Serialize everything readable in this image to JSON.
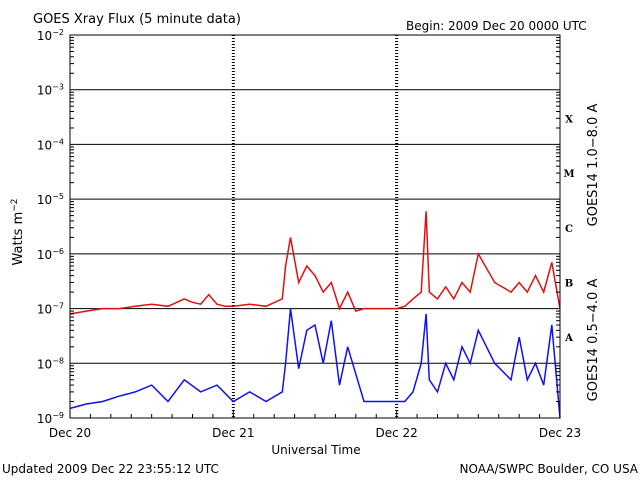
{
  "header": {
    "title": "GOES Xray Flux (5 minute data)",
    "begin": "Begin:  2009 Dec 20 0000 UTC"
  },
  "footer": {
    "updated": "Updated 2009 Dec 22 23:55:12 UTC",
    "source": "NOAA/SWPC Boulder, CO USA"
  },
  "chart_data": {
    "type": "line",
    "title": "GOES Xray Flux (5 minute data)",
    "xlabel": "Universal Time",
    "ylabel": "Watts m-2",
    "ylabel_base": "Watts m",
    "ylabel_sup": "−2",
    "y_scale": "log",
    "ylim": [
      1e-09,
      0.01
    ],
    "y_ticks": [
      {
        "value": 0.01,
        "base": "10",
        "exp": "−2"
      },
      {
        "value": 0.001,
        "base": "10",
        "exp": "−3"
      },
      {
        "value": 0.0001,
        "base": "10",
        "exp": "−4"
      },
      {
        "value": 1e-05,
        "base": "10",
        "exp": "−5"
      },
      {
        "value": 1e-06,
        "base": "10",
        "exp": "−6"
      },
      {
        "value": 1e-07,
        "base": "10",
        "exp": "−7"
      },
      {
        "value": 1e-08,
        "base": "10",
        "exp": "−8"
      },
      {
        "value": 1e-09,
        "base": "10",
        "exp": "−9"
      }
    ],
    "x_ticks": [
      "Dec 20",
      "Dec 21",
      "Dec 22",
      "Dec 23"
    ],
    "xlim_days": [
      0,
      3
    ],
    "flare_classes": [
      {
        "label": "X",
        "flux": 0.0003
      },
      {
        "label": "M",
        "flux": 3e-05
      },
      {
        "label": "C",
        "flux": 3e-06
      },
      {
        "label": "B",
        "flux": 3e-07
      },
      {
        "label": "A",
        "flux": 3e-08
      }
    ],
    "grid": true,
    "series": [
      {
        "name": "GOES14 1.0−8.0 A",
        "color": "#e01010",
        "x_days": [
          0,
          0.1,
          0.2,
          0.3,
          0.4,
          0.5,
          0.6,
          0.7,
          0.75,
          0.8,
          0.85,
          0.9,
          0.95,
          1.0,
          1.1,
          1.2,
          1.3,
          1.32,
          1.35,
          1.4,
          1.45,
          1.5,
          1.55,
          1.6,
          1.65,
          1.7,
          1.75,
          1.8,
          1.9,
          2.0,
          2.05,
          2.1,
          2.15,
          2.18,
          2.2,
          2.25,
          2.3,
          2.35,
          2.4,
          2.45,
          2.5,
          2.6,
          2.7,
          2.75,
          2.8,
          2.85,
          2.9,
          2.95,
          3.0
        ],
        "values": [
          8e-08,
          9e-08,
          1e-07,
          1e-07,
          1.1e-07,
          1.2e-07,
          1.1e-07,
          1.5e-07,
          1.3e-07,
          1.2e-07,
          1.8e-07,
          1.2e-07,
          1.1e-07,
          1.1e-07,
          1.2e-07,
          1.1e-07,
          1.5e-07,
          6e-07,
          2e-06,
          3e-07,
          6e-07,
          4e-07,
          2e-07,
          3e-07,
          1e-07,
          2e-07,
          9e-08,
          1e-07,
          1e-07,
          1e-07,
          1.1e-07,
          1.5e-07,
          2e-07,
          6e-06,
          2e-07,
          1.5e-07,
          2.5e-07,
          1.5e-07,
          3e-07,
          2e-07,
          1e-06,
          3e-07,
          2e-07,
          3e-07,
          2e-07,
          4e-07,
          2e-07,
          7e-07,
          1e-07
        ]
      },
      {
        "name": "GOES14 0.5−4.0 A",
        "color": "#1010f0",
        "x_days": [
          0,
          0.1,
          0.2,
          0.3,
          0.4,
          0.5,
          0.6,
          0.7,
          0.8,
          0.9,
          1.0,
          1.1,
          1.2,
          1.3,
          1.32,
          1.35,
          1.4,
          1.45,
          1.5,
          1.55,
          1.6,
          1.65,
          1.7,
          1.8,
          1.9,
          2.0,
          2.05,
          2.1,
          2.15,
          2.18,
          2.2,
          2.25,
          2.3,
          2.35,
          2.4,
          2.45,
          2.5,
          2.6,
          2.7,
          2.75,
          2.8,
          2.85,
          2.9,
          2.95,
          3.0
        ],
        "values": [
          1.5e-09,
          1.8e-09,
          2e-09,
          2.5e-09,
          3e-09,
          4e-09,
          2e-09,
          5e-09,
          3e-09,
          4e-09,
          2e-09,
          3e-09,
          2e-09,
          3e-09,
          1e-08,
          1e-07,
          8e-09,
          4e-08,
          5e-08,
          1e-08,
          6e-08,
          4e-09,
          2e-08,
          2e-09,
          2e-09,
          2e-09,
          2e-09,
          3e-09,
          1e-08,
          8e-08,
          5e-09,
          3e-09,
          1e-08,
          5e-09,
          2e-08,
          1e-08,
          4e-08,
          1e-08,
          5e-09,
          3e-08,
          5e-09,
          1e-08,
          4e-09,
          5e-08,
          1e-09
        ]
      }
    ]
  }
}
